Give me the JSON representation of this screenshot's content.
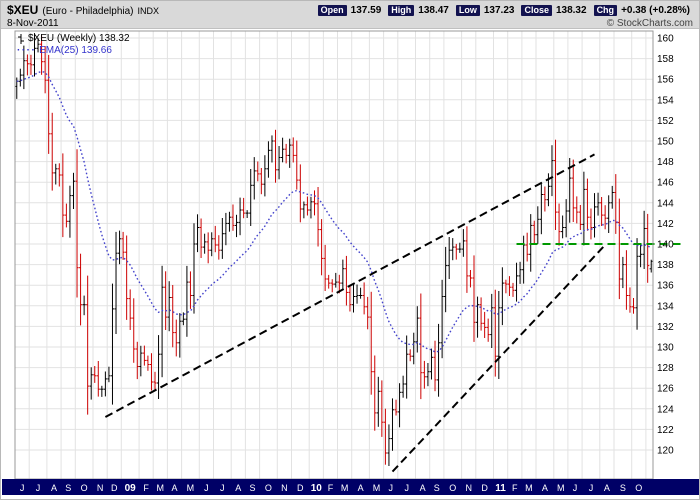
{
  "header": {
    "symbol": "$XEU",
    "name": "(Euro - Philadelphia)",
    "exchange": "INDX",
    "date": "8-Nov-2011",
    "credit": "© StockCharts.com",
    "quote": {
      "open_label": "Open",
      "open": "137.59",
      "high_label": "High",
      "high": "138.47",
      "low_label": "Low",
      "low": "137.23",
      "close_label": "Close",
      "close": "138.32",
      "chg_label": "Chg",
      "chg": "+0.38 (+0.28%)"
    }
  },
  "legend": {
    "series": "$XEU (Weekly) 138.32",
    "ema": "EMA(25) 139.66"
  },
  "chart_data": {
    "type": "ohlc-bar",
    "timeframe": "weekly",
    "title": "$XEU (Euro - Philadelphia) INDX",
    "x_range": "Jun 2008 - Nov 2011",
    "ylim": [
      117.18,
      160.68
    ],
    "yticks": [
      160,
      158,
      156,
      154,
      152,
      150,
      148,
      146,
      144,
      142,
      140,
      138,
      136,
      134,
      132,
      130,
      128,
      126,
      124,
      122,
      120
    ],
    "grid": true,
    "legend_position": "top-left",
    "ema_period": 25,
    "ema_last_value": 139.66,
    "last_bar": {
      "open": 137.59,
      "high": 138.47,
      "low": 137.23,
      "close": 138.32
    },
    "closes": [
      155.8,
      156.4,
      157.8,
      157.5,
      157.4,
      159.0,
      159.4,
      157.7,
      155.9,
      150.7,
      146.9,
      147.3,
      146.7,
      142.8,
      142.2,
      144.7,
      146.1,
      137.7,
      134.1,
      134.1,
      126.2,
      127.3,
      127.2,
      125.9,
      125.9,
      126.9,
      127.2,
      133.7,
      139.1,
      140.5,
      139.2,
      134.7,
      132.8,
      129.8,
      128.1,
      129.4,
      128.7,
      128.3,
      126.6,
      126.5,
      129.3,
      135.8,
      132.9,
      134.8,
      131.4,
      130.4,
      132.5,
      132.7,
      136.3,
      135.0,
      140.0,
      141.6,
      139.7,
      140.2,
      139.4,
      140.5,
      139.9,
      139.4,
      141.0,
      142.0,
      142.6,
      141.8,
      142.1,
      143.3,
      143.0,
      143.0,
      145.7,
      147.1,
      146.8,
      145.8,
      147.3,
      149.1,
      150.0,
      147.2,
      148.4,
      149.2,
      148.6,
      149.6,
      148.6,
      146.2,
      143.4,
      143.8,
      143.3,
      144.1,
      143.9,
      141.4,
      138.6,
      136.6,
      136.2,
      136.1,
      136.3,
      136.2,
      137.6,
      135.3,
      134.1,
      134.9,
      135.0,
      135.0,
      133.9,
      132.9,
      127.6,
      123.6,
      125.7,
      122.7,
      119.7,
      121.1,
      123.9,
      123.7,
      125.6,
      126.4,
      129.3,
      129.1,
      130.5,
      132.8,
      127.5,
      127.1,
      127.6,
      129.0,
      126.8,
      130.4,
      134.9,
      137.9,
      139.4,
      139.7,
      139.5,
      139.5,
      140.3,
      136.9,
      136.7,
      132.4,
      134.1,
      132.3,
      131.9,
      131.2,
      133.8,
      129.1,
      133.8,
      136.2,
      136.1,
      135.8,
      135.5,
      136.9,
      137.5,
      139.9,
      139.0,
      141.8,
      140.9,
      142.4,
      144.8,
      144.3,
      145.6,
      148.1,
      143.1,
      141.2,
      141.6,
      143.2,
      146.4,
      143.5,
      143.1,
      141.9,
      145.3,
      142.6,
      141.6,
      143.6,
      144.0,
      142.8,
      142.5,
      144.0,
      145.0,
      142.1,
      136.6,
      138.0,
      135.0,
      133.9,
      133.8,
      138.8,
      139.0,
      141.5,
      137.9,
      138.32
    ],
    "months": [
      {
        "l": "J",
        "w": 4
      },
      {
        "l": "J",
        "w": 5
      },
      {
        "l": "A",
        "w": 4
      },
      {
        "l": "S",
        "w": 4
      },
      {
        "l": "O",
        "w": 5
      },
      {
        "l": "N",
        "w": 4
      },
      {
        "l": "D",
        "w": 4
      },
      {
        "l": "09",
        "w": 5,
        "yr": true
      },
      {
        "l": "F",
        "w": 4
      },
      {
        "l": "M",
        "w": 4
      },
      {
        "l": "A",
        "w": 4
      },
      {
        "l": "M",
        "w": 5
      },
      {
        "l": "J",
        "w": 4
      },
      {
        "l": "J",
        "w": 5
      },
      {
        "l": "A",
        "w": 4
      },
      {
        "l": "S",
        "w": 4
      },
      {
        "l": "O",
        "w": 5
      },
      {
        "l": "N",
        "w": 4
      },
      {
        "l": "D",
        "w": 5
      },
      {
        "l": "10",
        "w": 4,
        "yr": true
      },
      {
        "l": "F",
        "w": 4
      },
      {
        "l": "M",
        "w": 4
      },
      {
        "l": "A",
        "w": 5
      },
      {
        "l": "M",
        "w": 4
      },
      {
        "l": "J",
        "w": 4
      },
      {
        "l": "J",
        "w": 5
      },
      {
        "l": "A",
        "w": 4
      },
      {
        "l": "S",
        "w": 4
      },
      {
        "l": "O",
        "w": 5
      },
      {
        "l": "N",
        "w": 4
      },
      {
        "l": "D",
        "w": 5
      },
      {
        "l": "11",
        "w": 4,
        "yr": true
      },
      {
        "l": "F",
        "w": 4
      },
      {
        "l": "M",
        "w": 4
      },
      {
        "l": "A",
        "w": 5
      },
      {
        "l": "M",
        "w": 4
      },
      {
        "l": "J",
        "w": 4
      },
      {
        "l": "J",
        "w": 5
      },
      {
        "l": "A",
        "w": 4
      },
      {
        "l": "S",
        "w": 5
      },
      {
        "l": "O",
        "w": 4
      },
      {
        "l": "",
        "w": 2
      }
    ],
    "trendlines": [
      {
        "name": "long-rising-support",
        "i1": 25,
        "p1": 123.2,
        "i2": 163,
        "p2": 148.7,
        "color": "#000000",
        "style": "dashed",
        "width": 2
      },
      {
        "name": "steep-rising-support",
        "i1": 106,
        "p1": 117.9,
        "i2": 166,
        "p2": 139.9,
        "color": "#000000",
        "style": "dashed",
        "width": 2
      }
    ],
    "hline": {
      "name": "resistance-140",
      "value": 140.0,
      "start_index": 141,
      "extend_to_x": 680,
      "color": "#009900",
      "style": "dashed",
      "width": 2
    },
    "colors": {
      "up": "#000000",
      "down": "#cc0000",
      "ema": "#4444cc",
      "grid": "#e2e2e2",
      "plot_border": "#999999",
      "axis_bg": "#000066",
      "axis_text": "#ffffff",
      "ylabel_text": "#000000"
    }
  }
}
